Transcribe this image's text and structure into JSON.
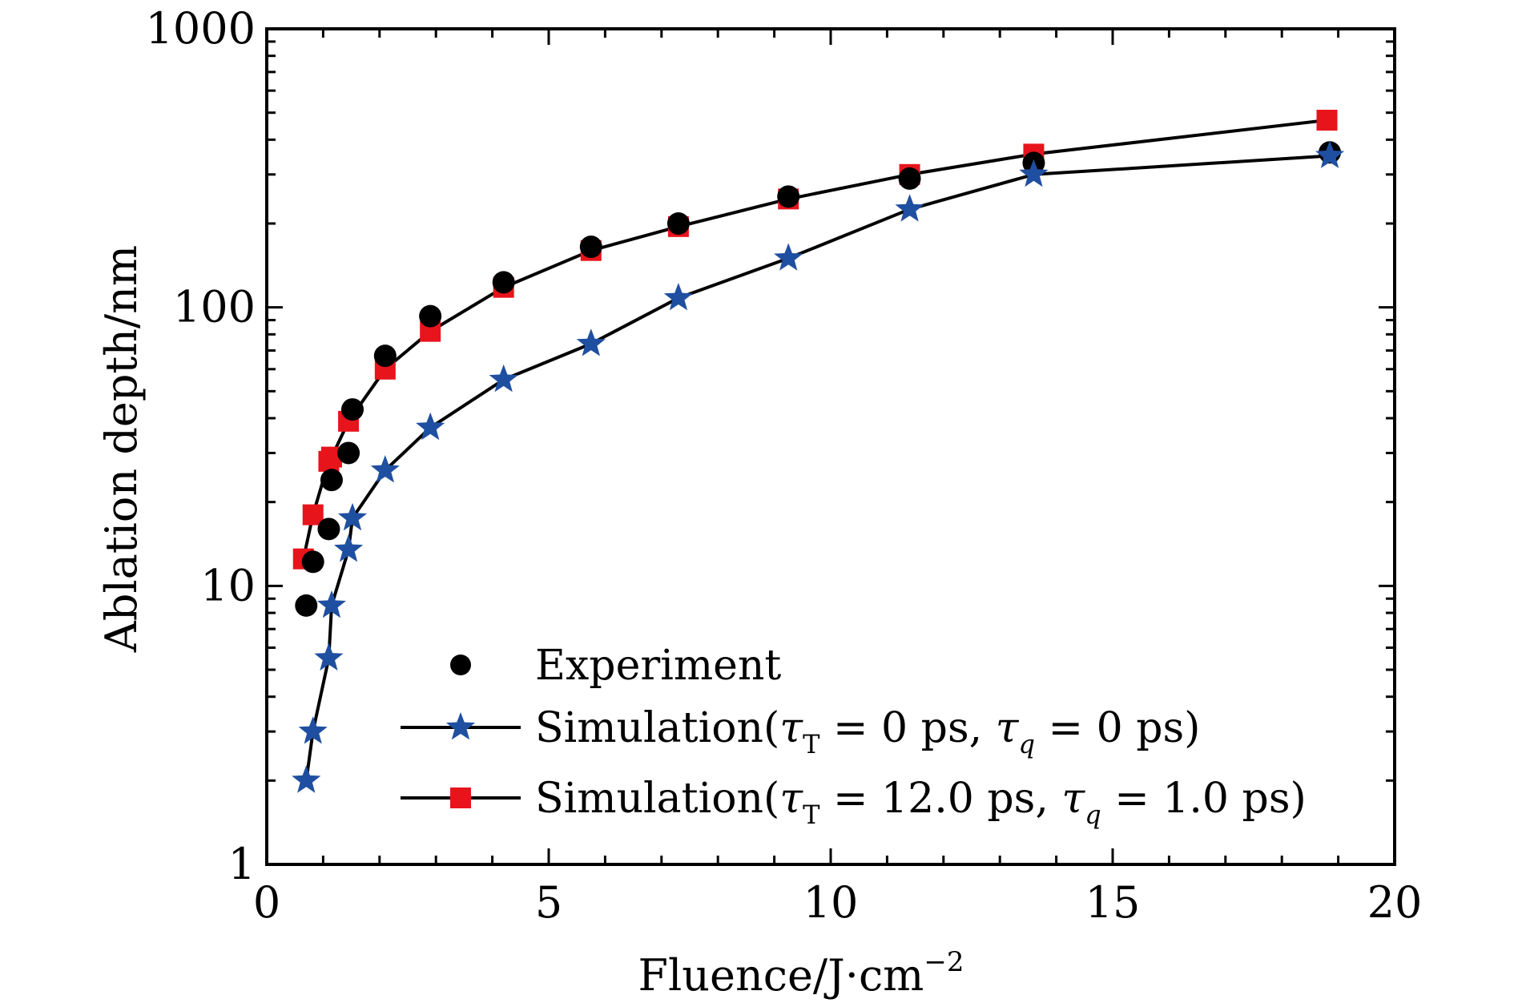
{
  "chart_data": {
    "type": "scatter",
    "title": "",
    "xlabel": "Fluence/J·cm",
    "xlabel_superscript": "−2",
    "ylabel": "Ablation depth/nm",
    "xlim": [
      0,
      20
    ],
    "ylim": [
      1,
      1000
    ],
    "yscale": "log",
    "x_ticks": [
      "0",
      "5",
      "10",
      "15",
      "20"
    ],
    "y_ticks": [
      "1",
      "10",
      "100",
      "1000"
    ],
    "grid": false,
    "legend_position": "bottom-right",
    "series": [
      {
        "name": "Experiment",
        "marker": "circle",
        "line": false,
        "color": "#000000",
        "x": [
          0.7,
          0.82,
          1.1,
          1.15,
          1.45,
          1.52,
          2.1,
          2.9,
          4.2,
          5.75,
          7.3,
          9.25,
          11.4,
          13.6,
          18.85
        ],
        "y": [
          8.5,
          12.2,
          16,
          24,
          30,
          43,
          67,
          93,
          123,
          165,
          200,
          250,
          290,
          330,
          360
        ]
      },
      {
        "name": "Simulation(τT = 0 ps, τq = 0 ps)",
        "label_prefix": "Simulation(",
        "tau_t_symbol": "τ",
        "tau_t_sub": "T",
        "tau_t_value": " = 0 ps, ",
        "tau_q_symbol": "τ",
        "tau_q_sub": "q",
        "tau_q_value": " = 0 ps)",
        "marker": "star",
        "line": true,
        "color": "#1f4fa0",
        "x": [
          0.7,
          0.82,
          1.1,
          1.15,
          1.45,
          1.52,
          2.1,
          2.9,
          4.2,
          5.75,
          7.3,
          9.25,
          11.4,
          13.6,
          18.85
        ],
        "y": [
          2.0,
          3.0,
          5.5,
          8.5,
          13.5,
          17.5,
          26,
          37,
          55,
          74,
          108,
          150,
          225,
          300,
          350
        ]
      },
      {
        "name": "Simulation(τT = 12.0 ps, τq = 1.0 ps)",
        "label_prefix": "Simulation(",
        "tau_t_symbol": "τ",
        "tau_t_sub": "T",
        "tau_t_value": " = 12.0 ps, ",
        "tau_q_symbol": "τ",
        "tau_q_sub": "q",
        "tau_q_value": " = 1.0 ps)",
        "marker": "square",
        "line": true,
        "color": "#e8141c",
        "x": [
          0.65,
          0.82,
          1.1,
          1.15,
          1.45,
          2.1,
          2.9,
          4.2,
          5.75,
          7.3,
          9.25,
          11.4,
          13.6,
          18.8
        ],
        "y": [
          12.5,
          18,
          28,
          29,
          39,
          60,
          82,
          118,
          160,
          195,
          245,
          300,
          355,
          470
        ]
      }
    ]
  }
}
